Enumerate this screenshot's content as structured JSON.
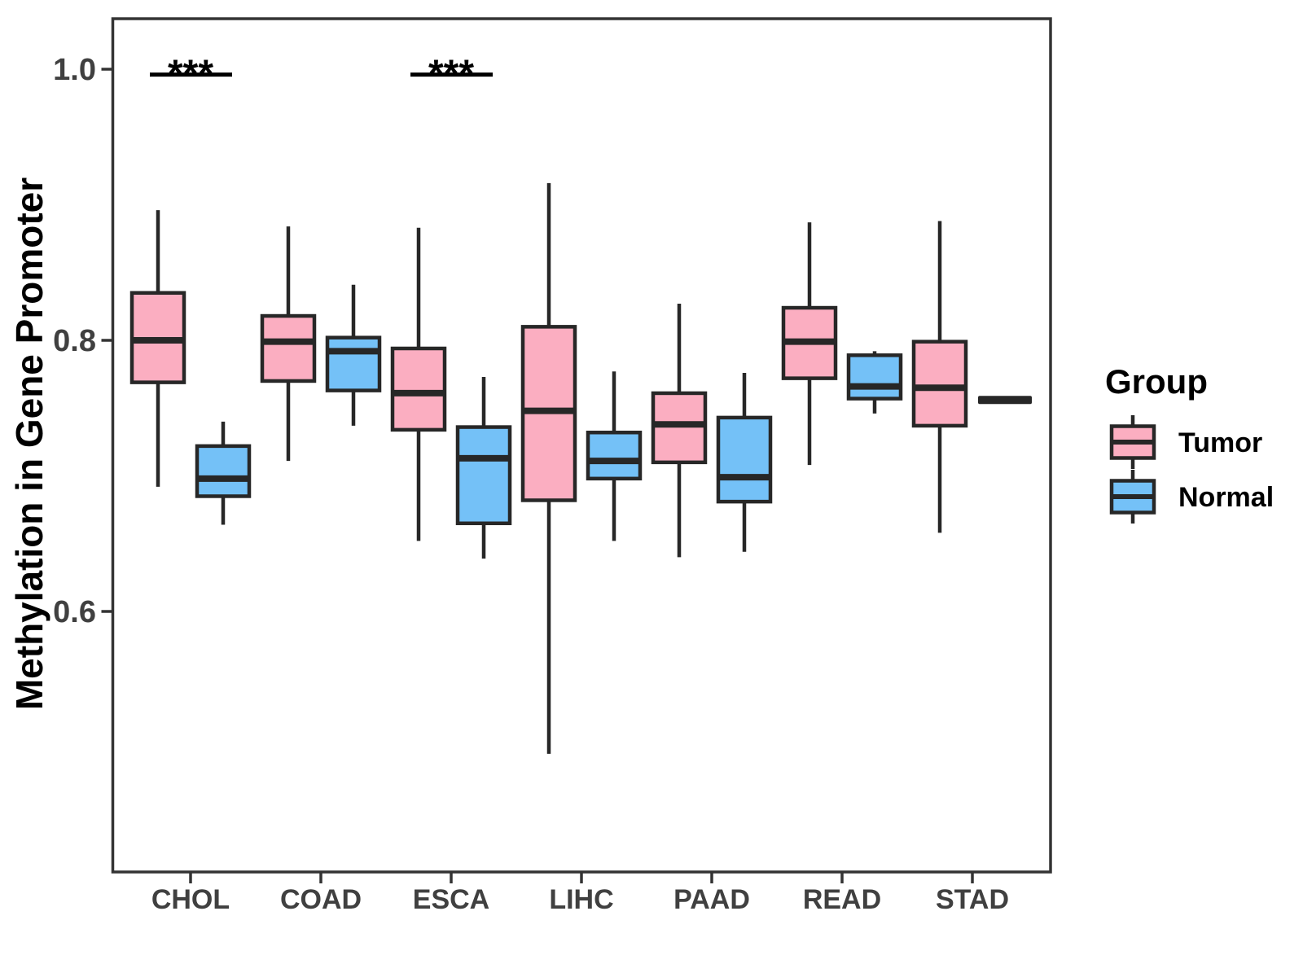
{
  "figure": {
    "background": "#FFFFFF"
  },
  "chart_data": {
    "type": "boxplot",
    "title": "",
    "xlabel": "",
    "ylabel": "Methylation in Gene Promoter",
    "categories": [
      "CHOL",
      "COAD",
      "ESCA",
      "LIHC",
      "PAAD",
      "READ",
      "STAD"
    ],
    "yticks": [
      {
        "value": 1.0,
        "label": "1.0"
      },
      {
        "value": 0.8,
        "label": "0.8"
      },
      {
        "value": 0.6,
        "label": "0.6"
      }
    ],
    "ylim": [
      0.42,
      1.03
    ],
    "grid": false,
    "legend": {
      "title": "Group",
      "position": "right",
      "entries": [
        {
          "label": "Tumor",
          "fill": "#FBAEC1"
        },
        {
          "label": "Normal",
          "fill": "#74C1F7"
        }
      ]
    },
    "series": [
      {
        "name": "Tumor",
        "fill": "#FBAEC1",
        "boxes": [
          {
            "category": "CHOL",
            "low": 0.692,
            "q1": 0.769,
            "median": 0.8,
            "q3": 0.835,
            "high": 0.896
          },
          {
            "category": "COAD",
            "low": 0.711,
            "q1": 0.77,
            "median": 0.799,
            "q3": 0.818,
            "high": 0.884
          },
          {
            "category": "ESCA",
            "low": 0.652,
            "q1": 0.734,
            "median": 0.761,
            "q3": 0.794,
            "high": 0.883
          },
          {
            "category": "LIHC",
            "low": 0.495,
            "q1": 0.682,
            "median": 0.748,
            "q3": 0.81,
            "high": 0.916
          },
          {
            "category": "PAAD",
            "low": 0.64,
            "q1": 0.71,
            "median": 0.738,
            "q3": 0.761,
            "high": 0.827
          },
          {
            "category": "READ",
            "low": 0.708,
            "q1": 0.772,
            "median": 0.799,
            "q3": 0.824,
            "high": 0.887
          },
          {
            "category": "STAD",
            "low": 0.658,
            "q1": 0.737,
            "median": 0.765,
            "q3": 0.799,
            "high": 0.888
          }
        ]
      },
      {
        "name": "Normal",
        "fill": "#74C1F7",
        "boxes": [
          {
            "category": "CHOL",
            "low": 0.664,
            "q1": 0.685,
            "median": 0.698,
            "q3": 0.722,
            "high": 0.74
          },
          {
            "category": "COAD",
            "low": 0.737,
            "q1": 0.763,
            "median": 0.792,
            "q3": 0.802,
            "high": 0.841
          },
          {
            "category": "ESCA",
            "low": 0.639,
            "q1": 0.665,
            "median": 0.713,
            "q3": 0.736,
            "high": 0.773
          },
          {
            "category": "LIHC",
            "low": 0.652,
            "q1": 0.698,
            "median": 0.711,
            "q3": 0.732,
            "high": 0.777
          },
          {
            "category": "PAAD",
            "low": 0.644,
            "q1": 0.681,
            "median": 0.699,
            "q3": 0.743,
            "high": 0.776
          },
          {
            "category": "READ",
            "low": 0.746,
            "q1": 0.757,
            "median": 0.766,
            "q3": 0.789,
            "high": 0.792
          },
          {
            "category": "STAD",
            "low": 0.756,
            "q1": 0.756,
            "median": 0.756,
            "q3": 0.756,
            "high": 0.756
          }
        ]
      }
    ],
    "annotations": [
      {
        "category": "CHOL",
        "label": "***",
        "line_y": 0.996
      },
      {
        "category": "ESCA",
        "label": "***",
        "line_y": 0.996
      }
    ],
    "colors": {
      "box_stroke": "#272727",
      "panel_border": "#333333",
      "tick_label": "#404040",
      "axis_title": "#000000",
      "annotation": "#000000",
      "legend_text": "#000000"
    }
  }
}
